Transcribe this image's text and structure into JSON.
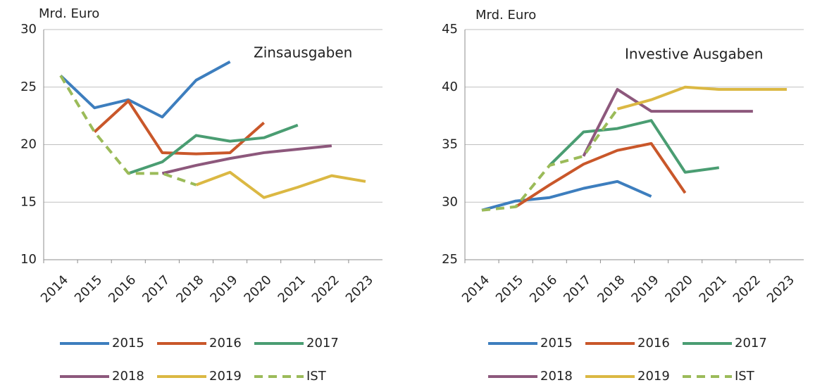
{
  "chart_data": [
    {
      "type": "line",
      "title": "Zinsausgaben",
      "y_label": "Mrd. Euro",
      "categories": [
        "2014",
        "2015",
        "2016",
        "2017",
        "2018",
        "2019",
        "2020",
        "2021",
        "2022",
        "2023"
      ],
      "ylim": [
        10,
        30
      ],
      "yticks": [
        10,
        15,
        20,
        25,
        30
      ],
      "grid": true,
      "series": [
        {
          "name": "2015",
          "color": "#3d7ebe",
          "values": [
            26,
            23.2,
            23.9,
            22.4,
            25.6,
            27.2,
            null,
            null,
            null,
            null
          ]
        },
        {
          "name": "2016",
          "color": "#c9572a",
          "values": [
            null,
            21.1,
            23.8,
            19.3,
            19.2,
            19.3,
            21.9,
            null,
            null,
            null
          ]
        },
        {
          "name": "2017",
          "color": "#4a9d72",
          "values": [
            null,
            null,
            17.5,
            18.5,
            20.8,
            20.3,
            20.6,
            21.7,
            null,
            null
          ]
        },
        {
          "name": "2018",
          "color": "#8d587c",
          "values": [
            null,
            null,
            null,
            17.5,
            18.2,
            18.8,
            19.3,
            19.6,
            19.9,
            null
          ]
        },
        {
          "name": "2019",
          "color": "#dbb843",
          "values": [
            null,
            null,
            null,
            null,
            16.5,
            17.6,
            15.4,
            16.3,
            17.3,
            16.8
          ]
        },
        {
          "name": "IST",
          "color": "#9bbb59",
          "dashed": true,
          "values": [
            26,
            21.1,
            17.5,
            17.5,
            16.5,
            null,
            null,
            null,
            null,
            null
          ]
        }
      ]
    },
    {
      "type": "line",
      "title": "Investive Ausgaben",
      "y_label": "Mrd. Euro",
      "categories": [
        "2014",
        "2015",
        "2016",
        "2017",
        "2018",
        "2019",
        "2020",
        "2021",
        "2022",
        "2023"
      ],
      "ylim": [
        25,
        45
      ],
      "yticks": [
        25,
        30,
        35,
        40,
        45
      ],
      "grid": true,
      "series": [
        {
          "name": "2015",
          "color": "#3d7ebe",
          "values": [
            29.3,
            30.1,
            30.4,
            31.2,
            31.8,
            30.5,
            null,
            null,
            null,
            null
          ]
        },
        {
          "name": "2016",
          "color": "#c9572a",
          "values": [
            null,
            29.6,
            31.5,
            33.3,
            34.5,
            35.1,
            30.8,
            null,
            null,
            null
          ]
        },
        {
          "name": "2017",
          "color": "#4a9d72",
          "values": [
            null,
            null,
            33.2,
            36.1,
            36.4,
            37.1,
            32.6,
            33.0,
            null,
            null
          ]
        },
        {
          "name": "2018",
          "color": "#8d587c",
          "values": [
            null,
            null,
            null,
            34.0,
            39.8,
            37.9,
            37.9,
            37.9,
            37.9,
            null
          ]
        },
        {
          "name": "2019",
          "color": "#dbb843",
          "values": [
            null,
            null,
            null,
            null,
            38.1,
            38.9,
            40.0,
            39.8,
            39.8,
            39.8
          ]
        },
        {
          "name": "IST",
          "color": "#9bbb59",
          "dashed": true,
          "values": [
            29.3,
            29.6,
            33.2,
            34.0,
            38.1,
            null,
            null,
            null,
            null,
            null
          ]
        }
      ]
    }
  ]
}
